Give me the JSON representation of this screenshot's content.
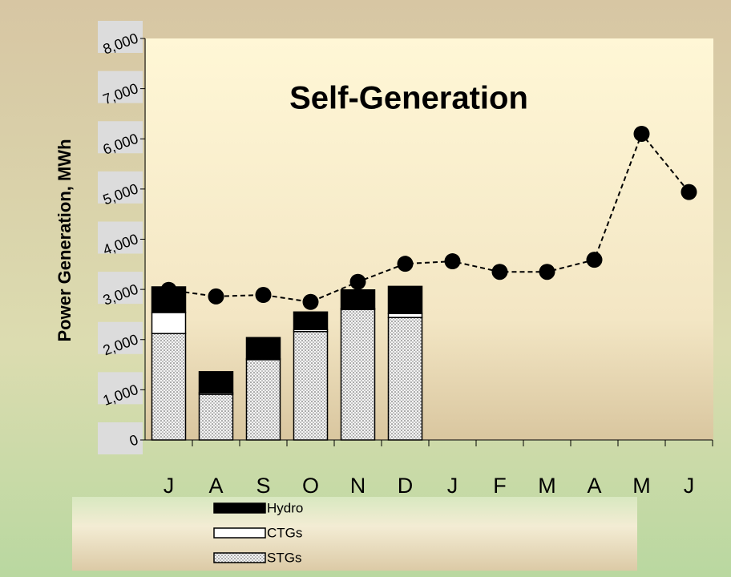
{
  "chart_data": {
    "type": "stacked-bar-line",
    "title": "Self-Generation",
    "y_label": "Power Generation, MWh",
    "categories": [
      "J",
      "A",
      "S",
      "O",
      "N",
      "D",
      "J",
      "F",
      "M",
      "A",
      "M",
      "J"
    ],
    "series": [
      {
        "name": "STGs",
        "color": "#ffffff",
        "pattern": "dots",
        "values": [
          2120,
          910,
          1600,
          2160,
          2600,
          2440,
          null,
          null,
          null,
          null,
          null,
          null
        ]
      },
      {
        "name": "CTGs",
        "color": "#ffffff",
        "values": [
          420,
          30,
          20,
          40,
          20,
          80,
          null,
          null,
          null,
          null,
          null,
          null
        ]
      },
      {
        "name": "Hydro",
        "color": "#000000",
        "values": [
          510,
          420,
          420,
          350,
          370,
          540,
          null,
          null,
          null,
          null,
          null,
          null
        ]
      },
      {
        "type": "line",
        "color": "#000000",
        "dashed": true,
        "values": [
          2990,
          2860,
          2890,
          2750,
          3150,
          3510,
          3560,
          3350,
          3350,
          3590,
          6100,
          4940
        ]
      }
    ],
    "ylim": [
      0,
      8000
    ],
    "yticks": [
      0,
      {
        "value": 1000,
        "label": "1,000"
      },
      {
        "value": 2000,
        "label": "2,000"
      },
      {
        "value": 3000,
        "label": "3,000"
      },
      {
        "value": 4000,
        "label": "4,000"
      },
      {
        "value": 5000,
        "label": "5,000"
      },
      {
        "value": 6000,
        "label": "6,000"
      },
      {
        "value": 7000,
        "label": "7,000"
      },
      {
        "value": 8000,
        "label": "8,000"
      }
    ]
  }
}
